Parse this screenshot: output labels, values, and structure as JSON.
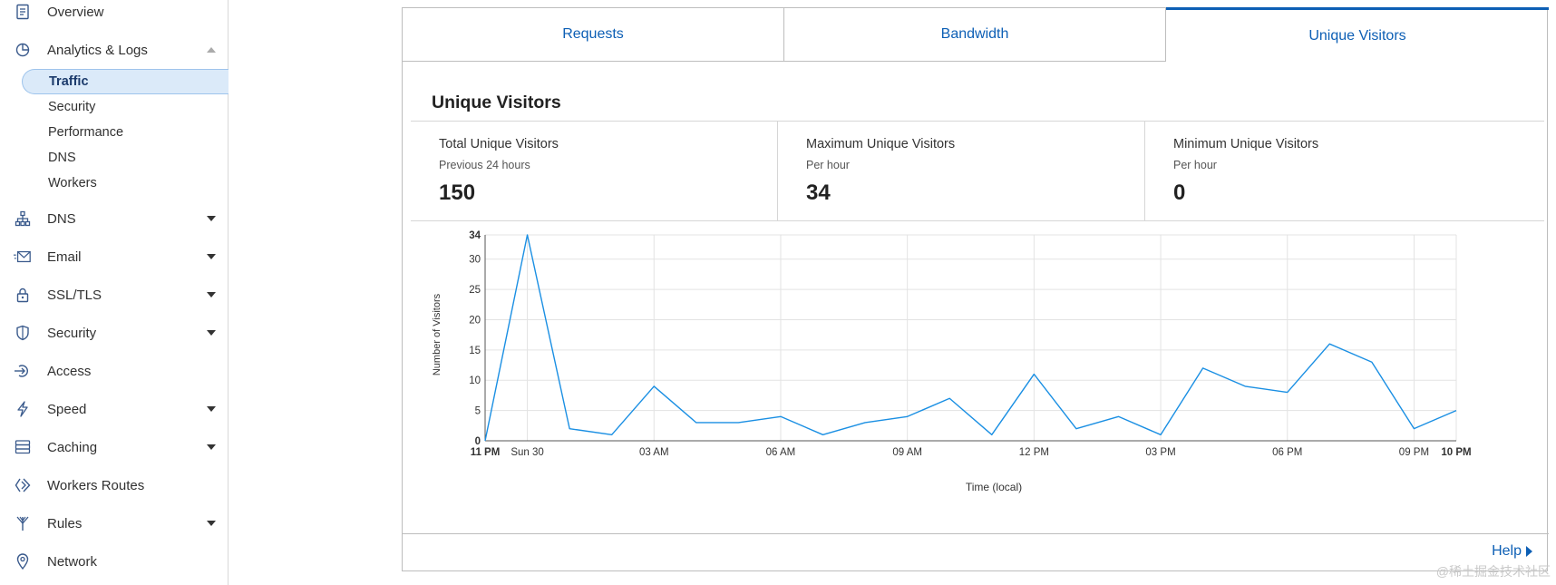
{
  "sidebar": {
    "items": [
      {
        "label": "Overview",
        "icon": "document-icon",
        "caret": "none"
      },
      {
        "label": "Analytics & Logs",
        "icon": "pie-chart-icon",
        "caret": "up"
      },
      {
        "label": "DNS",
        "icon": "network-tree-icon",
        "caret": "down"
      },
      {
        "label": "Email",
        "icon": "envelope-icon",
        "caret": "down"
      },
      {
        "label": "SSL/TLS",
        "icon": "lock-icon",
        "caret": "down"
      },
      {
        "label": "Security",
        "icon": "shield-icon",
        "caret": "down"
      },
      {
        "label": "Access",
        "icon": "access-icon",
        "caret": "none"
      },
      {
        "label": "Speed",
        "icon": "lightning-icon",
        "caret": "down"
      },
      {
        "label": "Caching",
        "icon": "server-stack-icon",
        "caret": "down"
      },
      {
        "label": "Workers Routes",
        "icon": "workers-icon",
        "caret": "none"
      },
      {
        "label": "Rules",
        "icon": "funnel-icon",
        "caret": "down"
      },
      {
        "label": "Network",
        "icon": "location-pin-icon",
        "caret": "none"
      }
    ],
    "subitems": [
      {
        "label": "Traffic",
        "active": true
      },
      {
        "label": "Security",
        "active": false
      },
      {
        "label": "Performance",
        "active": false
      },
      {
        "label": "DNS",
        "active": false
      },
      {
        "label": "Workers",
        "active": false
      }
    ]
  },
  "tabs": [
    "Requests",
    "Bandwidth",
    "Unique Visitors"
  ],
  "active_tab": "Unique Visitors",
  "section_title": "Unique Visitors",
  "stats": [
    {
      "title": "Total Unique Visitors",
      "subtitle": "Previous 24 hours",
      "value": "150"
    },
    {
      "title": "Maximum Unique Visitors",
      "subtitle": "Per hour",
      "value": "34"
    },
    {
      "title": "Minimum Unique Visitors",
      "subtitle": "Per hour",
      "value": "0"
    }
  ],
  "chart_data": {
    "type": "line",
    "xlabel": "Time (local)",
    "ylabel": "Number of Visitors",
    "ylim": [
      0,
      34
    ],
    "yticks": [
      0,
      5,
      10,
      15,
      20,
      25,
      30,
      34
    ],
    "grid": true,
    "x_tick_labels": [
      "11 PM",
      "Sun 30",
      "03 AM",
      "06 AM",
      "09 AM",
      "12 PM",
      "03 PM",
      "06 PM",
      "09 PM",
      "10 PM"
    ],
    "x_tick_hours": [
      0,
      1,
      4,
      7,
      10,
      13,
      16,
      19,
      22,
      23
    ],
    "x": [
      "11 PM",
      "12 AM",
      "01 AM",
      "02 AM",
      "03 AM",
      "04 AM",
      "05 AM",
      "06 AM",
      "07 AM",
      "08 AM",
      "09 AM",
      "10 AM",
      "11 AM",
      "12 PM",
      "01 PM",
      "02 PM",
      "03 PM",
      "04 PM",
      "05 PM",
      "06 PM",
      "07 PM",
      "08 PM",
      "09 PM",
      "10 PM"
    ],
    "series": [
      {
        "values": [
          0,
          34,
          2,
          1,
          9,
          3,
          3,
          4,
          1,
          3,
          4,
          7,
          1,
          11,
          2,
          4,
          1,
          12,
          9,
          8,
          16,
          13,
          2,
          5
        ]
      }
    ],
    "line_color": "#1a8fe3"
  },
  "footer": {
    "help_label": "Help"
  },
  "watermark": "@稀土掘金技术社区"
}
